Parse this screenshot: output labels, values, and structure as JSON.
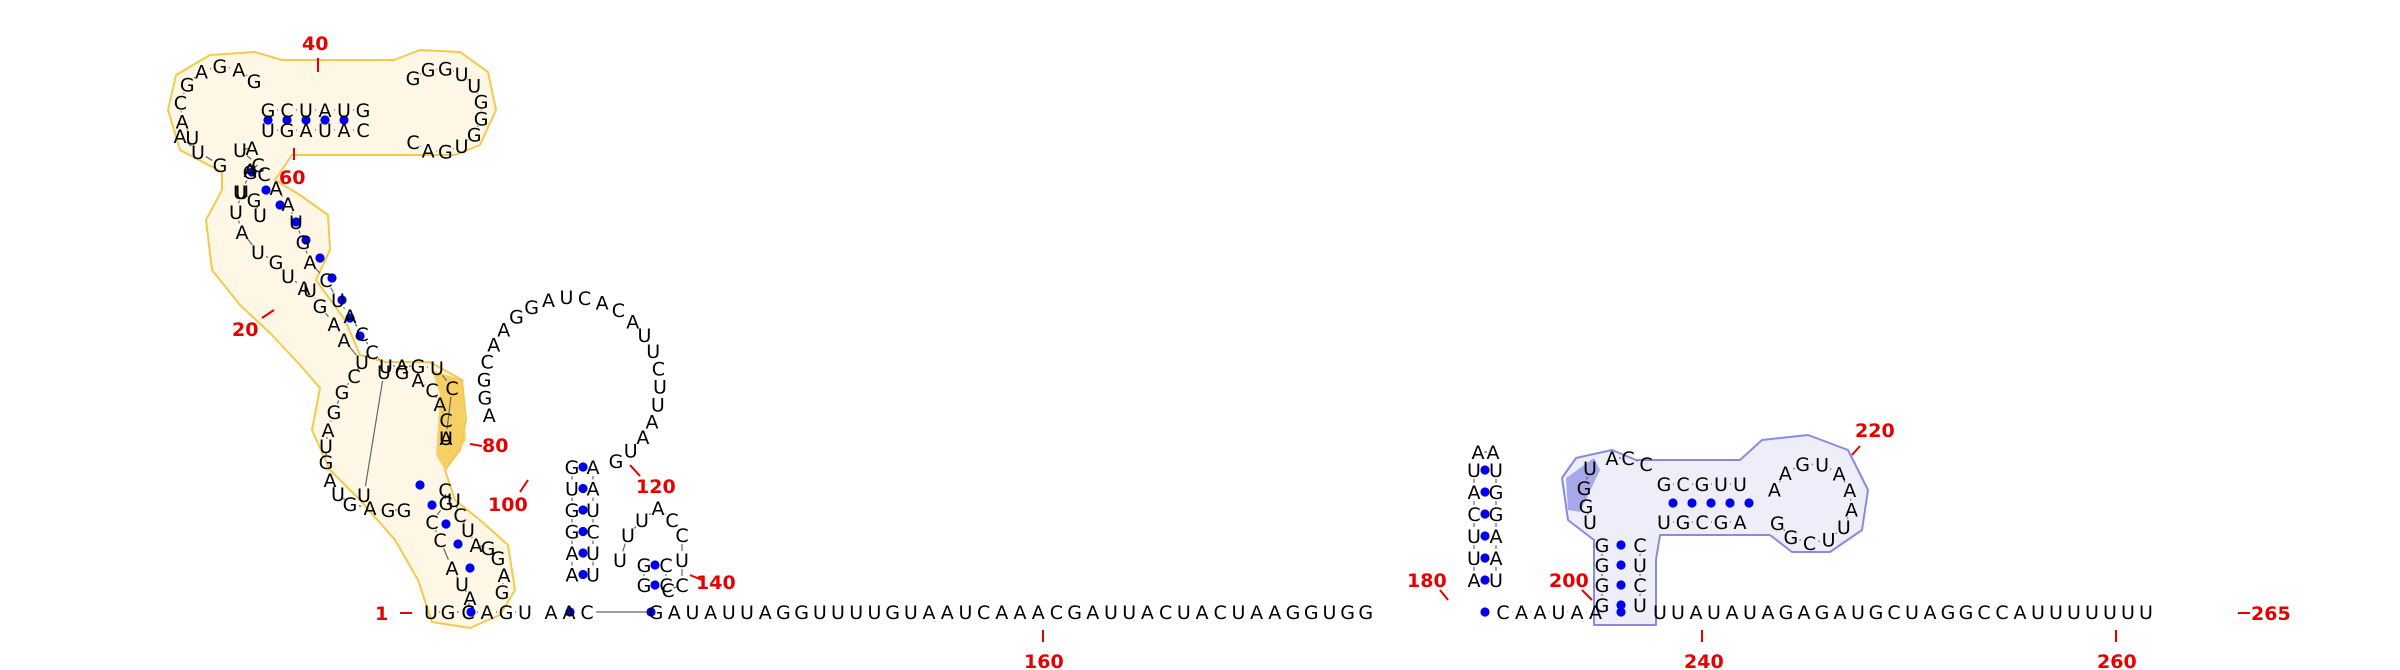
{
  "diagram": {
    "type": "rna-secondary-structure",
    "length": 265,
    "position_labels": [
      "1",
      "20",
      "40",
      "60",
      "80",
      "100",
      "120",
      "140",
      "160",
      "180",
      "200",
      "220",
      "240",
      "260",
      "265"
    ],
    "highlight_colors": {
      "domain_a": "#f5c94c",
      "domain_b": "#8a8ae0"
    },
    "base_pair_color": "#0000ee",
    "label_color": "#e60000",
    "tail_sequence": "CAGUAACGAUAUUAGGUUUUGUAAUCAAACGAUUACUACUAAGGUGGCAAUAAUUAUAUAGAGAUGCUAGGCCAUUUUUUU"
  }
}
